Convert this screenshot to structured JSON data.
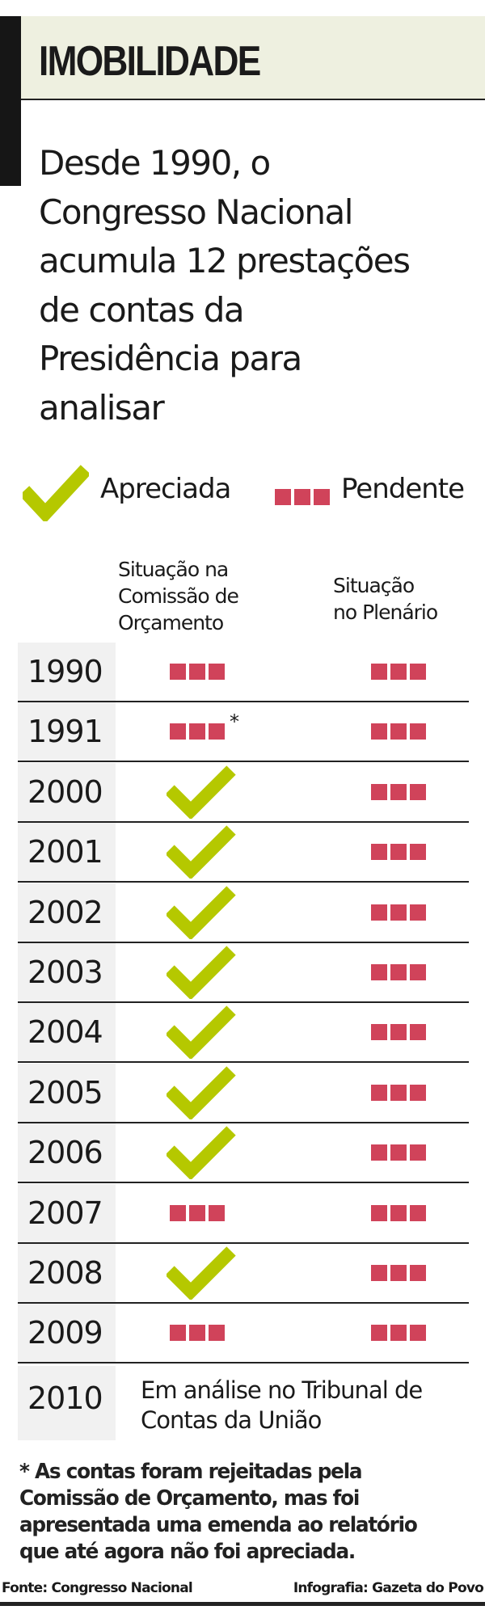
{
  "title": "IMOBILIDADE",
  "intro_lines": [
    "Desde 1990, o",
    "Congresso Nacional",
    "acumula 12 prestações",
    "de contas da",
    "Presidência para",
    "analisar"
  ],
  "legend": {
    "approved": "Apreciada",
    "pending": "Pendente"
  },
  "colors": {
    "approved": "#b5c800",
    "pending": "#d0435a",
    "header_bg": "#eef0e0"
  },
  "columns": {
    "committee": [
      "Situação na",
      "Comissão de",
      "Orçamento"
    ],
    "plenary": [
      "Situação",
      "no Plenário"
    ]
  },
  "rows": [
    {
      "year": "1990",
      "committee": "pending",
      "plenary": "pending"
    },
    {
      "year": "1991",
      "committee": "pending",
      "plenary": "pending",
      "asterisk": "*"
    },
    {
      "year": "2000",
      "committee": "approved",
      "plenary": "pending"
    },
    {
      "year": "2001",
      "committee": "approved",
      "plenary": "pending"
    },
    {
      "year": "2002",
      "committee": "approved",
      "plenary": "pending"
    },
    {
      "year": "2003",
      "committee": "approved",
      "plenary": "pending"
    },
    {
      "year": "2004",
      "committee": "approved",
      "plenary": "pending"
    },
    {
      "year": "2005",
      "committee": "approved",
      "plenary": "pending"
    },
    {
      "year": "2006",
      "committee": "approved",
      "plenary": "pending"
    },
    {
      "year": "2007",
      "committee": "pending",
      "plenary": "pending"
    },
    {
      "year": "2008",
      "committee": "approved",
      "plenary": "pending"
    },
    {
      "year": "2009",
      "committee": "pending",
      "plenary": "pending"
    }
  ],
  "row_2010": {
    "year": "2010",
    "note_lines": [
      "Em análise no Tribunal de",
      "Contas da União"
    ]
  },
  "footnote": "* As contas foram rejeitadas pela Comissão de Orçamento, mas foi apresentada uma emenda ao relatório que até agora não foi apreciada.",
  "source": "Fonte: Congresso Nacional",
  "credit": "Infografia: Gazeta do Povo"
}
